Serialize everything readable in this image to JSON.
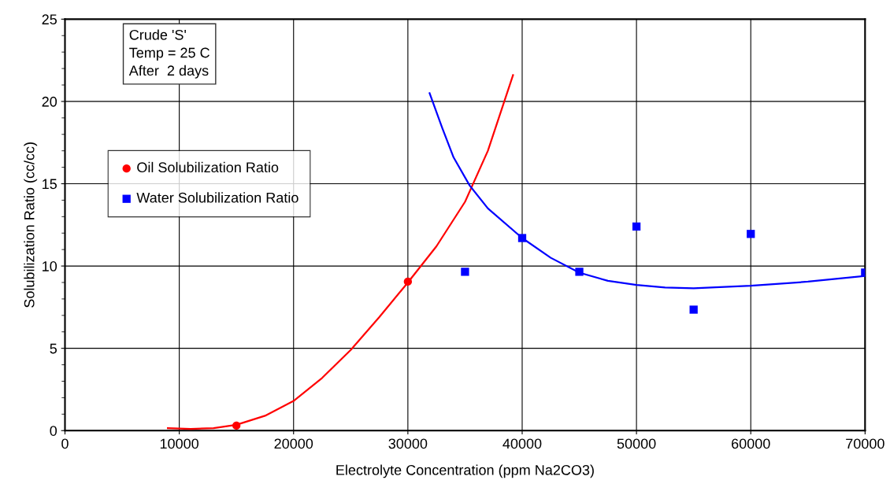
{
  "chart_data": {
    "type": "scatter",
    "xlabel": "Electrolyte Concentration (ppm Na2CO3)",
    "ylabel": "Solubilization Ratio (cc/cc)",
    "xlim": [
      0,
      70000
    ],
    "ylim": [
      0,
      25
    ],
    "xticks": [
      0,
      10000,
      20000,
      30000,
      40000,
      50000,
      60000,
      70000
    ],
    "yticks": [
      0,
      5,
      10,
      15,
      20,
      25
    ],
    "grid": true,
    "legend": "left",
    "annotations": [
      "Crude 'S'\nTemp = 25 C\nAfter  2 days"
    ],
    "series": [
      {
        "name": "Oil Solubilization Ratio",
        "color": "#ff0000",
        "marker": "circle",
        "x": [
          15000,
          30000
        ],
        "values": [
          0.3,
          9.05
        ]
      },
      {
        "name": "Water Solubilization Ratio",
        "color": "#0000ff",
        "marker": "square",
        "x": [
          35000,
          40000,
          45000,
          50000,
          55000,
          60000,
          70000
        ],
        "values": [
          9.65,
          11.7,
          9.65,
          12.4,
          7.35,
          11.95,
          9.6
        ]
      },
      {
        "type": "line",
        "color": "#ff0000",
        "marker": "none",
        "x": [
          9000,
          11000,
          13000,
          15000,
          17500,
          20000,
          22500,
          25000,
          27500,
          30000,
          32500,
          35000,
          37000,
          39200
        ],
        "values": [
          0.15,
          0.1,
          0.15,
          0.35,
          0.9,
          1.8,
          3.2,
          4.9,
          6.9,
          9.0,
          11.2,
          13.9,
          17.0,
          21.6
        ]
      },
      {
        "type": "line",
        "color": "#0000ff",
        "marker": "none",
        "x": [
          31900,
          33000,
          34000,
          35400,
          37000,
          40000,
          42500,
          45000,
          47500,
          50000,
          52500,
          55000,
          60000,
          65000,
          70000
        ],
        "values": [
          20.5,
          18.4,
          16.6,
          14.9,
          13.5,
          11.7,
          10.5,
          9.6,
          9.1,
          8.85,
          8.7,
          8.65,
          8.8,
          9.05,
          9.4
        ]
      }
    ]
  }
}
